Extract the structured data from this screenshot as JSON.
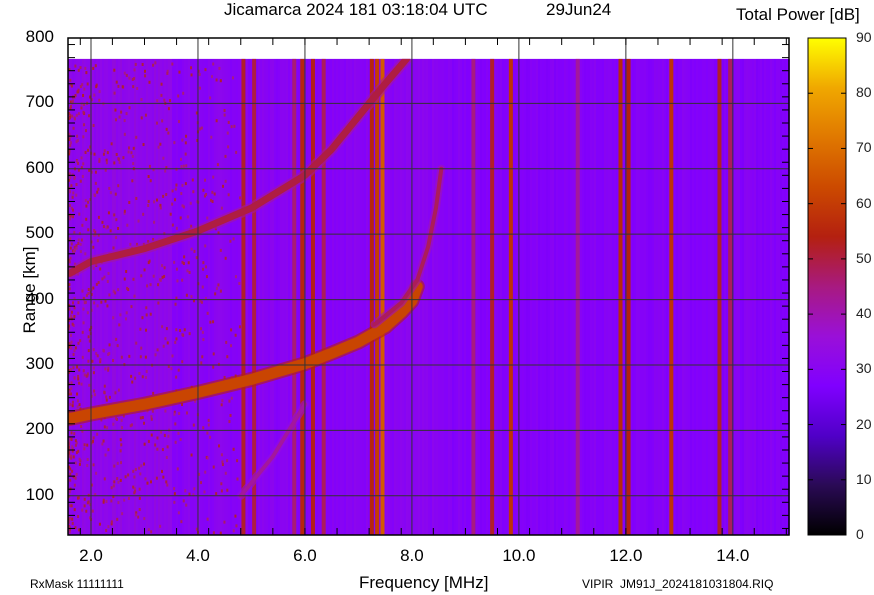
{
  "header": {
    "title": "Jicamarca 2024 181 03:18:04 UTC",
    "date": "29Jun24",
    "colorbar_title": "Total Power [dB]"
  },
  "footer": {
    "rxmask": "RxMask 11111111",
    "file": "VIPIR  JM91J_2024181031804.RIQ"
  },
  "chart_data": {
    "type": "heatmap",
    "title": "Jicamarca 2024 181 03:18:04 UTC  29Jun24",
    "xlabel": "Frequency [MHz]",
    "ylabel": "Range [km]",
    "colorbar_label": "Total Power [dB]",
    "xlim": [
      1.57,
      15.05
    ],
    "ylim": [
      40,
      800
    ],
    "data_range_top_km": 768,
    "x_ticks": [
      "2.0",
      "4.0",
      "6.0",
      "8.0",
      "10.0",
      "12.0",
      "14.0"
    ],
    "x_tick_values": [
      2,
      4,
      6,
      8,
      10,
      12,
      14
    ],
    "y_ticks": [
      "100",
      "200",
      "300",
      "400",
      "500",
      "600",
      "700",
      "800"
    ],
    "y_tick_values": [
      100,
      200,
      300,
      400,
      500,
      600,
      700,
      800
    ],
    "colorbar_ticks": [
      "0",
      "10",
      "20",
      "30",
      "40",
      "50",
      "60",
      "70",
      "80",
      "90"
    ],
    "colorbar_range": [
      0,
      90
    ],
    "colormap": [
      "#000000",
      "#2a0a55",
      "#5000c8",
      "#8000ff",
      "#9a10d8",
      "#a81a80",
      "#b42010",
      "#cc4a00",
      "#e07800",
      "#f0a800",
      "#ffff00"
    ],
    "background_power_db": 28,
    "grid": true,
    "traces": [
      {
        "name": "F-layer O-mode echo (1-hop)",
        "power_db": 62,
        "points": [
          [
            1.6,
            218
          ],
          [
            2.0,
            225
          ],
          [
            3.0,
            240
          ],
          [
            4.0,
            258
          ],
          [
            5.0,
            278
          ],
          [
            6.0,
            302
          ],
          [
            6.5,
            318
          ],
          [
            7.0,
            335
          ],
          [
            7.5,
            358
          ],
          [
            7.8,
            380
          ],
          [
            8.0,
            398
          ],
          [
            8.1,
            420
          ]
        ]
      },
      {
        "name": "F-layer X-mode branch",
        "power_db": 48,
        "points": [
          [
            7.3,
            362
          ],
          [
            7.8,
            395
          ],
          [
            8.1,
            430
          ],
          [
            8.3,
            480
          ],
          [
            8.45,
            540
          ],
          [
            8.55,
            600
          ]
        ]
      },
      {
        "name": "Second-hop echo (2F)",
        "power_db": 50,
        "points": [
          [
            1.6,
            440
          ],
          [
            2.0,
            458
          ],
          [
            3.0,
            478
          ],
          [
            4.0,
            505
          ],
          [
            5.0,
            540
          ],
          [
            6.0,
            590
          ],
          [
            6.5,
            630
          ],
          [
            7.0,
            680
          ],
          [
            7.5,
            730
          ],
          [
            7.9,
            768
          ]
        ]
      },
      {
        "name": "Faint oblique trace",
        "power_db": 42,
        "points": [
          [
            4.8,
            100
          ],
          [
            5.4,
            160
          ],
          [
            6.0,
            240
          ]
        ]
      }
    ],
    "interference_lines_mhz": [
      {
        "f": 4.85,
        "power_db": 52
      },
      {
        "f": 5.05,
        "power_db": 50
      },
      {
        "f": 5.8,
        "power_db": 46
      },
      {
        "f": 5.95,
        "power_db": 55
      },
      {
        "f": 6.15,
        "power_db": 53
      },
      {
        "f": 6.35,
        "power_db": 48
      },
      {
        "f": 7.25,
        "power_db": 55
      },
      {
        "f": 7.35,
        "power_db": 60
      },
      {
        "f": 7.45,
        "power_db": 66
      },
      {
        "f": 9.15,
        "power_db": 45
      },
      {
        "f": 9.5,
        "power_db": 52
      },
      {
        "f": 9.85,
        "power_db": 58
      },
      {
        "f": 11.1,
        "power_db": 42
      },
      {
        "f": 11.9,
        "power_db": 56
      },
      {
        "f": 12.05,
        "power_db": 54
      },
      {
        "f": 12.85,
        "power_db": 58
      },
      {
        "f": 13.75,
        "power_db": 52
      },
      {
        "f": 13.95,
        "power_db": 48
      }
    ]
  }
}
